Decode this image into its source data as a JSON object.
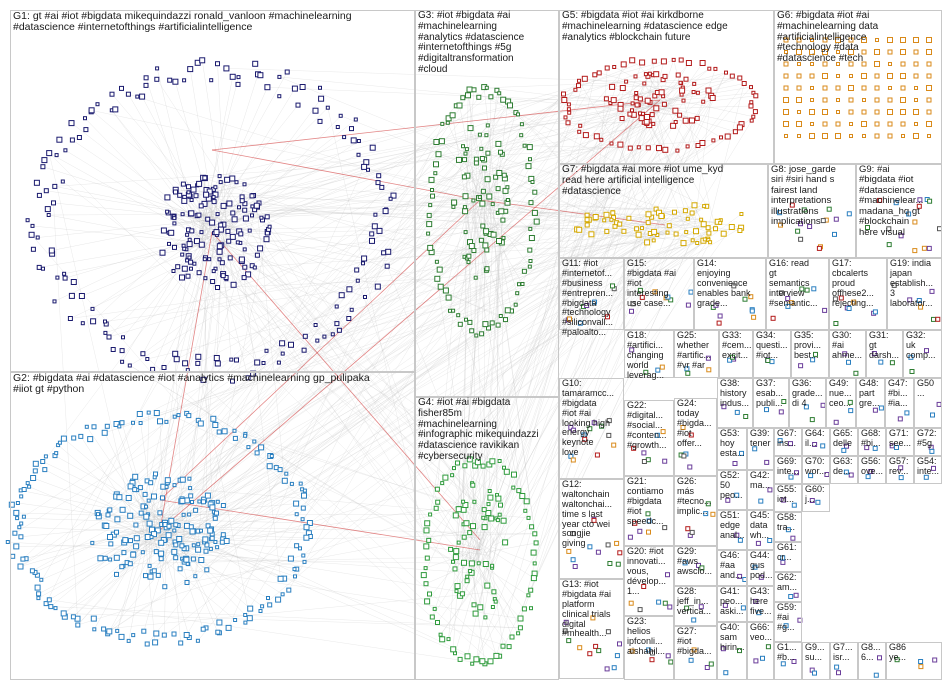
{
  "colors": {
    "G1": "#1a1a6e",
    "G2": "#2a7fc0",
    "G3": "#2e7d32",
    "G4": "#2f9b3c",
    "G5": "#b31b1b",
    "G6": "#d98a1a",
    "G7": "#d4a800",
    "G8": "#8a8a8a",
    "G9": "#6a3d9a",
    "edge": "#c0c0c0",
    "red_edge": "#cc2222",
    "border": "#c8c8c8"
  },
  "groups": [
    {
      "id": "G1",
      "label": "G1: gt #ai #iot #bigdata mikequindazzi ronald_vanloon #machinelearning\n#datascience #internetofthings #artificialintelligence"
    },
    {
      "id": "G2",
      "label": "G2: #bigdata #ai #datascience #iot #analytics #machinelearning gp_pulipaka\n#iiot gt #python"
    },
    {
      "id": "G3",
      "label": "G3: #iot #bigdata #ai\n#machinelearning\n#analytics #datascience\n#internetofthings #5g\n#digitaltransformation\n#cloud"
    },
    {
      "id": "G4",
      "label": "G4: #iot #ai #bigdata\nfisher85m\n#machinelearning\n#infographic mikequindazzi\n#datascience ravikikan\n#cybersecurity"
    },
    {
      "id": "G5",
      "label": "G5: #bigdata #iot #ai kirkdborne\n#machinelearning #datascience edge\n#analytics #blockchain future"
    },
    {
      "id": "G6",
      "label": "G6: #bigdata #iot #ai\n#machinelearning data\n#artificialintelligence\n#technology #data\n#datascience #tech"
    },
    {
      "id": "G7",
      "label": "G7: #bigdata #ai more #iot ume_kyd\nread here artificial intelligence\n#datascience"
    },
    {
      "id": "G8",
      "label": "G8: jose_garde\nsiri #siri hand s\nfairest land\ninterpretations\nillustrations\nimplications"
    },
    {
      "id": "G9",
      "label": "G9: #ai\n#bigdata #iot\n#datascience\n#machinelear...\nmadana_hq gt\n#blockchain\nhere visual"
    },
    {
      "id": "G11",
      "label": "G11: #iot\n#internetof...\n#business\n#entrepren...\n#bigdata\n#technology\n#siliconvall...\n#paloalto..."
    },
    {
      "id": "G15",
      "label": "G15:\n#bigdata #ai\n#iot\ninteresting\nuse case..."
    },
    {
      "id": "G14",
      "label": "G14:\nenjoying\nconvenience\nenables bank\ngrade..."
    },
    {
      "id": "G16",
      "label": "G16: read\ngt\nsemantics\ninterview\n#semantic..."
    },
    {
      "id": "G17",
      "label": "G17:\ncbcalerts\nproud\noffhese2...\nrejecting..."
    },
    {
      "id": "G19",
      "label": "G19: india\njapan\nestablish...\n3\nlaborator..."
    },
    {
      "id": "G18",
      "label": "G18:\n#artifici...\nchanging\nworld\nleverag..."
    },
    {
      "id": "G25",
      "label": "G25:\nwhether\n#artific...\n#vr #ar"
    },
    {
      "id": "G33",
      "label": "G33:\n#cem...\nexcit..."
    },
    {
      "id": "G34",
      "label": "G34:\nquesti...\n#iot..."
    },
    {
      "id": "G35",
      "label": "G35:\nprovi...\nbest..."
    },
    {
      "id": "G30",
      "label": "G30:\n#ai\nahme..."
    },
    {
      "id": "G31",
      "label": "G31:\ngt\ndarsh..."
    },
    {
      "id": "G32",
      "label": "G32:\nuk\ncomp..."
    },
    {
      "id": "G10",
      "label": "G10:\ntamaramcc...\n#bigdata\n#iot #ai\nlooking high\nenergy\nkeynote\nlove"
    },
    {
      "id": "G22",
      "label": "G22:\n#digital...\n#social...\n#conten...\n#growth..."
    },
    {
      "id": "G24",
      "label": "G24:\ntoday\n#bigda...\n#iot\noffer..."
    },
    {
      "id": "G38",
      "label": "G38:\nhistory\nindus..."
    },
    {
      "id": "G37",
      "label": "G37:\nesab...\npubli..."
    },
    {
      "id": "G36",
      "label": "G36:\ngrade...\ndi 4"
    },
    {
      "id": "G49",
      "label": "G49:\nnue...\nceo..."
    },
    {
      "id": "G48",
      "label": "G48:\npart\ngre..."
    },
    {
      "id": "G47",
      "label": "G47:\n#bi...\n#ia..."
    },
    {
      "id": "G50",
      "label": "G50\n..."
    },
    {
      "id": "G53",
      "label": "G53:\nhoy\nesta..."
    },
    {
      "id": "G39",
      "label": "G39:\ntener"
    },
    {
      "id": "G67",
      "label": "G67:\nins..."
    },
    {
      "id": "G64",
      "label": "G64:\nil..."
    },
    {
      "id": "G65",
      "label": "G65:\ndelle"
    },
    {
      "id": "G68",
      "label": "G68:\n#bi..."
    },
    {
      "id": "G71",
      "label": "G71:\nsee..."
    },
    {
      "id": "G72",
      "label": "G72:\n#5g"
    },
    {
      "id": "G12",
      "label": "G12:\nwaltonchain\nwaltonchai...\ntime s last\nyear cto wei\nsongjie\ngiving"
    },
    {
      "id": "G21",
      "label": "G21:\ncontiamo\n#bigdata\n#iot\nspeedc..."
    },
    {
      "id": "G26",
      "label": "G26:\nmás\n#tecno...\nimplic..."
    },
    {
      "id": "G52",
      "label": "G52:\n50\npeo..."
    },
    {
      "id": "G42",
      "label": "G42:\nma..."
    },
    {
      "id": "G69",
      "label": "G69:\ninte..."
    },
    {
      "id": "G70",
      "label": "G70:\nwor..."
    },
    {
      "id": "G63",
      "label": "G63:\nde..."
    },
    {
      "id": "G56",
      "label": "G56:\nove..."
    },
    {
      "id": "G57",
      "label": "G57:\nrev..."
    },
    {
      "id": "G54",
      "label": "G54:\ninte..."
    },
    {
      "id": "G51",
      "label": "G51:\nedge\nanal..."
    },
    {
      "id": "G45",
      "label": "G45:\ndata\nwh..."
    },
    {
      "id": "G55",
      "label": "G55:\niot..."
    },
    {
      "id": "G60",
      "label": "G60:\nj..."
    },
    {
      "id": "G13",
      "label": "G13: #iot\n#bigdata #ai\nplatform\nclinical trials\ndigital\n#mhealth..."
    },
    {
      "id": "G20",
      "label": "G20: #iot\ninnovati...\nvous,\ndévelop...\n1..."
    },
    {
      "id": "G29",
      "label": "G29:\n#aws\nawsclo..."
    },
    {
      "id": "G46",
      "label": "G46:\n#aa\nand..."
    },
    {
      "id": "G44",
      "label": "G44:\ngus\npod..."
    },
    {
      "id": "G58",
      "label": "G58:\ntra..."
    },
    {
      "id": "G61",
      "label": "G61:\ncr..."
    },
    {
      "id": "G28",
      "label": "G28:\njeff_in...\nvertica..."
    },
    {
      "id": "G41",
      "label": "G41:\npeo...\naski..."
    },
    {
      "id": "G43",
      "label": "G43:\nhere\nfive..."
    },
    {
      "id": "G62",
      "label": "G62:\nam..."
    },
    {
      "id": "G23",
      "label": "G23:\nhelios\nipfconli...\naishahil..."
    },
    {
      "id": "G27",
      "label": "G27:\n#iot\n#bigda..."
    },
    {
      "id": "G40",
      "label": "G40:\nsam\nhirin..."
    },
    {
      "id": "G66",
      "label": "G66:\nveo..."
    },
    {
      "id": "G59",
      "label": "G59:\n#ai\n#g..."
    },
    {
      "id": "G1x",
      "label": "G1...\n#b..."
    },
    {
      "id": "G9a",
      "label": "G9...\nsu..."
    },
    {
      "id": "G7x",
      "label": "G7...\nisr..."
    },
    {
      "id": "G8x",
      "label": "G8...\n6..."
    },
    {
      "id": "G86",
      "label": "G86\nye..."
    }
  ]
}
